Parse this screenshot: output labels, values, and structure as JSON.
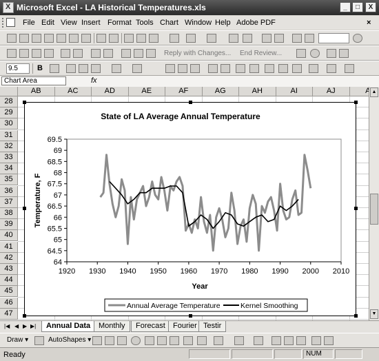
{
  "window": {
    "title": "Microsoft Excel - LA Historical Temperatures.xls",
    "min_label": "_",
    "max_label": "□",
    "close_label": "X"
  },
  "menu": {
    "items": [
      "File",
      "Edit",
      "View",
      "Insert",
      "Format",
      "Tools",
      "Chart",
      "Window",
      "Help",
      "Adobe PDF"
    ],
    "close_label": "× "
  },
  "toolbar": {
    "reply_label": "Reply with Changes...",
    "end_review_label": "End Review...",
    "font_size": "9.5",
    "bold_label": "B",
    "help_label": "?"
  },
  "formula_bar": {
    "name_box": "Chart Area",
    "fx_label": "fx"
  },
  "sheet": {
    "columns": [
      "AB",
      "AC",
      "AD",
      "AE",
      "AF",
      "AG",
      "AH",
      "AI",
      "AJ",
      "A"
    ],
    "rows": [
      "28",
      "29",
      "30",
      "31",
      "32",
      "33",
      "34",
      "35",
      "36",
      "37",
      "38",
      "39",
      "40",
      "41",
      "42",
      "43",
      "44",
      "45",
      "46",
      "47"
    ]
  },
  "tabs": {
    "sheets": [
      "Annual Data",
      "Monthly",
      "Forecast",
      "Fourier",
      "Testir"
    ],
    "active": "Annual Data"
  },
  "drawing": {
    "draw_label": "Draw ▾",
    "autoshapes_label": "AutoShapes ▾"
  },
  "status": {
    "text": "Ready",
    "num": "NUM"
  },
  "chart_data": {
    "type": "line",
    "title": "State of LA Average Annual Temperature",
    "xlabel": "Year",
    "ylabel": "Temperature, F",
    "xlim": [
      1920,
      2010
    ],
    "ylim": [
      64,
      69.5
    ],
    "x_ticks": [
      1920,
      1930,
      1940,
      1950,
      1960,
      1970,
      1980,
      1990,
      2000,
      2010
    ],
    "y_ticks": [
      64,
      64.5,
      65,
      65.5,
      66,
      66.5,
      67,
      67.5,
      68,
      68.5,
      69,
      69.5
    ],
    "grid": false,
    "legend_position": "bottom",
    "series": [
      {
        "name": "Annual Average Temperature",
        "color": "#8c8c8c",
        "x": [
          1931,
          1932,
          1933,
          1934,
          1935,
          1936,
          1937,
          1938,
          1939,
          1940,
          1941,
          1942,
          1943,
          1944,
          1945,
          1946,
          1947,
          1948,
          1949,
          1950,
          1951,
          1952,
          1953,
          1954,
          1955,
          1956,
          1957,
          1958,
          1959,
          1960,
          1961,
          1962,
          1963,
          1964,
          1965,
          1966,
          1967,
          1968,
          1969,
          1970,
          1971,
          1972,
          1973,
          1974,
          1975,
          1976,
          1977,
          1978,
          1979,
          1980,
          1981,
          1982,
          1983,
          1984,
          1985,
          1986,
          1987,
          1988,
          1989,
          1990,
          1991,
          1992,
          1993,
          1994,
          1995,
          1996,
          1997,
          1998,
          1999,
          2000
        ],
        "y": [
          66.9,
          67.1,
          68.8,
          67.5,
          66.6,
          66.0,
          66.5,
          67.7,
          67.2,
          64.8,
          66.9,
          65.9,
          66.8,
          67.1,
          67.4,
          66.5,
          66.9,
          67.6,
          67.0,
          66.8,
          67.8,
          67.2,
          66.3,
          67.4,
          67.2,
          67.6,
          67.8,
          67.4,
          65.4,
          65.7,
          65.3,
          65.9,
          65.5,
          66.9,
          65.8,
          65.3,
          66.1,
          64.5,
          66.0,
          66.4,
          65.9,
          65.1,
          65.5,
          67.1,
          66.3,
          64.8,
          65.6,
          65.9,
          64.9,
          66.4,
          67.0,
          66.6,
          64.5,
          66.5,
          66.2,
          66.7,
          66.9,
          66.3,
          65.4,
          67.5,
          66.3,
          65.9,
          66.0,
          66.8,
          67.2,
          66.1,
          66.2,
          68.8,
          68.1,
          67.3
        ]
      },
      {
        "name": "Kernel Smoothing",
        "color": "#000000",
        "x": [
          1934,
          1936,
          1938,
          1940,
          1942,
          1944,
          1946,
          1948,
          1950,
          1952,
          1954,
          1956,
          1958,
          1960,
          1962,
          1964,
          1966,
          1968,
          1970,
          1972,
          1974,
          1976,
          1978,
          1980,
          1982,
          1984,
          1986,
          1988,
          1990,
          1992,
          1994,
          1996
        ],
        "y": [
          67.6,
          67.3,
          67.0,
          66.6,
          66.8,
          67.1,
          67.1,
          67.3,
          67.3,
          67.3,
          67.4,
          67.4,
          67.1,
          65.6,
          65.8,
          66.1,
          65.9,
          65.5,
          65.8,
          66.2,
          66.1,
          65.7,
          65.6,
          65.8,
          66.0,
          66.1,
          65.8,
          65.9,
          66.5,
          66.3,
          66.5,
          66.8
        ]
      }
    ]
  }
}
